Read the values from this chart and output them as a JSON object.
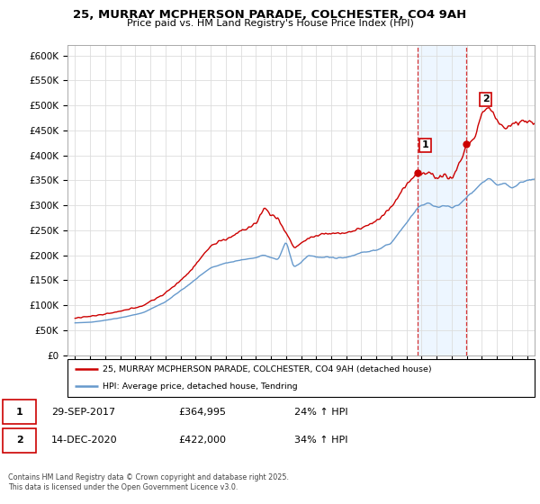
{
  "title": "25, MURRAY MCPHERSON PARADE, COLCHESTER, CO4 9AH",
  "subtitle": "Price paid vs. HM Land Registry's House Price Index (HPI)",
  "ylabel_ticks": [
    "£0",
    "£50K",
    "£100K",
    "£150K",
    "£200K",
    "£250K",
    "£300K",
    "£350K",
    "£400K",
    "£450K",
    "£500K",
    "£550K",
    "£600K"
  ],
  "ytick_vals": [
    0,
    50000,
    100000,
    150000,
    200000,
    250000,
    300000,
    350000,
    400000,
    450000,
    500000,
    550000,
    600000
  ],
  "ylim": [
    0,
    620000
  ],
  "xlim_start": 1994.5,
  "xlim_end": 2025.5,
  "red_color": "#cc0000",
  "blue_color": "#6699cc",
  "shaded_color": "#ddeeff",
  "ann1_x": 2017.75,
  "ann1_y": 364995,
  "ann2_x": 2020.96,
  "ann2_y": 422000,
  "ann1_label": "1",
  "ann2_label": "2",
  "legend_line1": "25, MURRAY MCPHERSON PARADE, COLCHESTER, CO4 9AH (detached house)",
  "legend_line2": "HPI: Average price, detached house, Tendring",
  "footer": "Contains HM Land Registry data © Crown copyright and database right 2025.\nThis data is licensed under the Open Government Licence v3.0.",
  "table_rows": [
    [
      "1",
      "29-SEP-2017",
      "£364,995",
      "24% ↑ HPI"
    ],
    [
      "2",
      "14-DEC-2020",
      "£422,000",
      "34% ↑ HPI"
    ]
  ]
}
